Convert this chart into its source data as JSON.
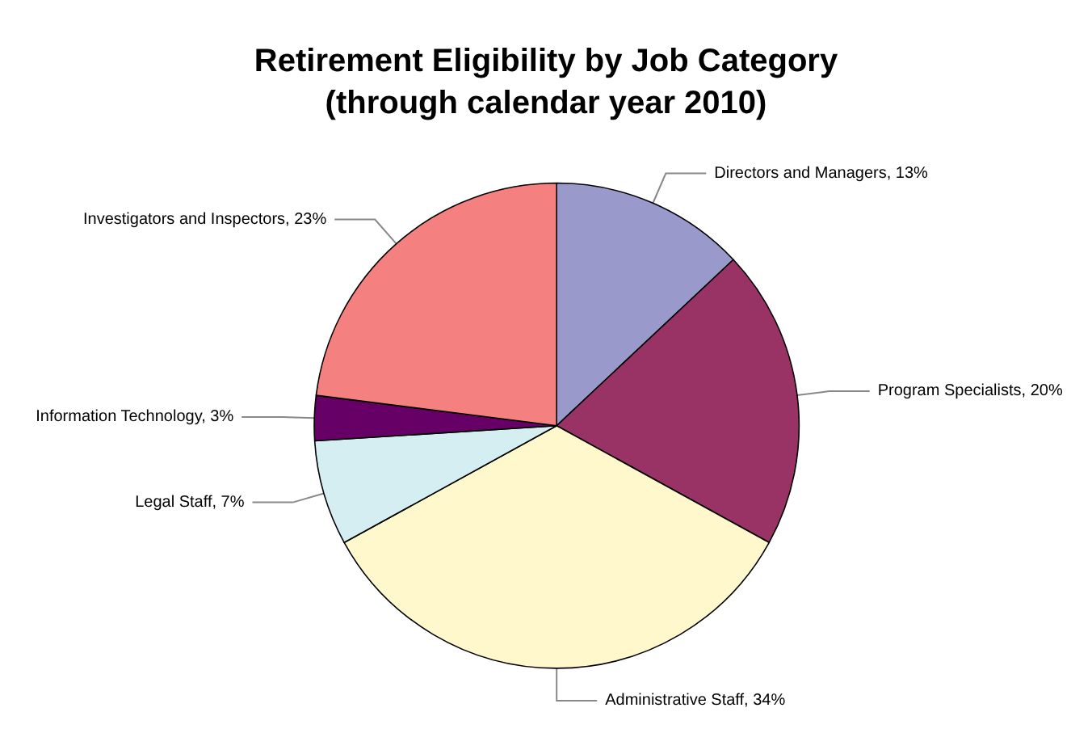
{
  "chart_data": {
    "type": "pie",
    "title": "Retirement Eligibility by Job Category\n(through calendar year 2010)",
    "categories": [
      "Directors and Managers, 13%",
      "Program Specialists, 20%",
      "Administrative Staff, 34%",
      "Legal Staff, 7%",
      "Information Technology, 3%",
      "Investigators and Inspectors, 23%"
    ],
    "values": [
      13,
      20,
      34,
      7,
      3,
      23
    ],
    "colors": [
      "#9999cc",
      "#993366",
      "#fff8cc",
      "#d4eef2",
      "#660066",
      "#f58080"
    ],
    "legend": false
  }
}
